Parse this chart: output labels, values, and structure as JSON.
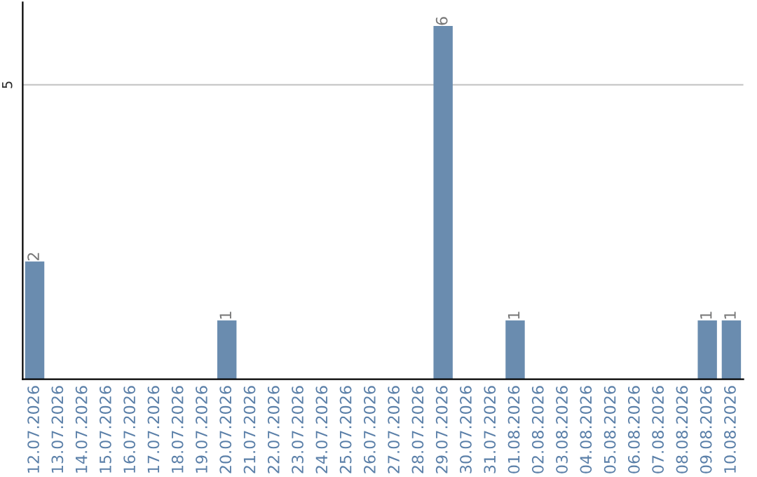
{
  "chart_data": {
    "type": "bar",
    "categories": [
      "12.07.2026",
      "13.07.2026",
      "14.07.2026",
      "15.07.2026",
      "16.07.2026",
      "17.07.2026",
      "18.07.2026",
      "19.07.2026",
      "20.07.2026",
      "21.07.2026",
      "22.07.2026",
      "23.07.2026",
      "24.07.2026",
      "25.07.2026",
      "26.07.2026",
      "27.07.2026",
      "28.07.2026",
      "29.07.2026",
      "30.07.2026",
      "31.07.2026",
      "01.08.2026",
      "02.08.2026",
      "03.08.2026",
      "04.08.2026",
      "05.08.2026",
      "06.08.2026",
      "07.08.2026",
      "08.08.2026",
      "09.08.2026",
      "10.08.2026"
    ],
    "values": [
      2,
      0,
      0,
      0,
      0,
      0,
      0,
      0,
      1,
      0,
      0,
      0,
      0,
      0,
      0,
      0,
      0,
      6,
      0,
      0,
      1,
      0,
      0,
      0,
      0,
      0,
      0,
      0,
      1,
      1
    ],
    "value_labels": [
      "2",
      null,
      null,
      null,
      null,
      null,
      null,
      null,
      "1",
      null,
      null,
      null,
      null,
      null,
      null,
      null,
      null,
      "6",
      null,
      null,
      "1",
      null,
      null,
      null,
      null,
      null,
      null,
      null,
      "1",
      "1"
    ],
    "color": "#6a8caf",
    "ylim": [
      0,
      6.4
    ],
    "yticks": [
      5
    ],
    "grid": "y"
  }
}
